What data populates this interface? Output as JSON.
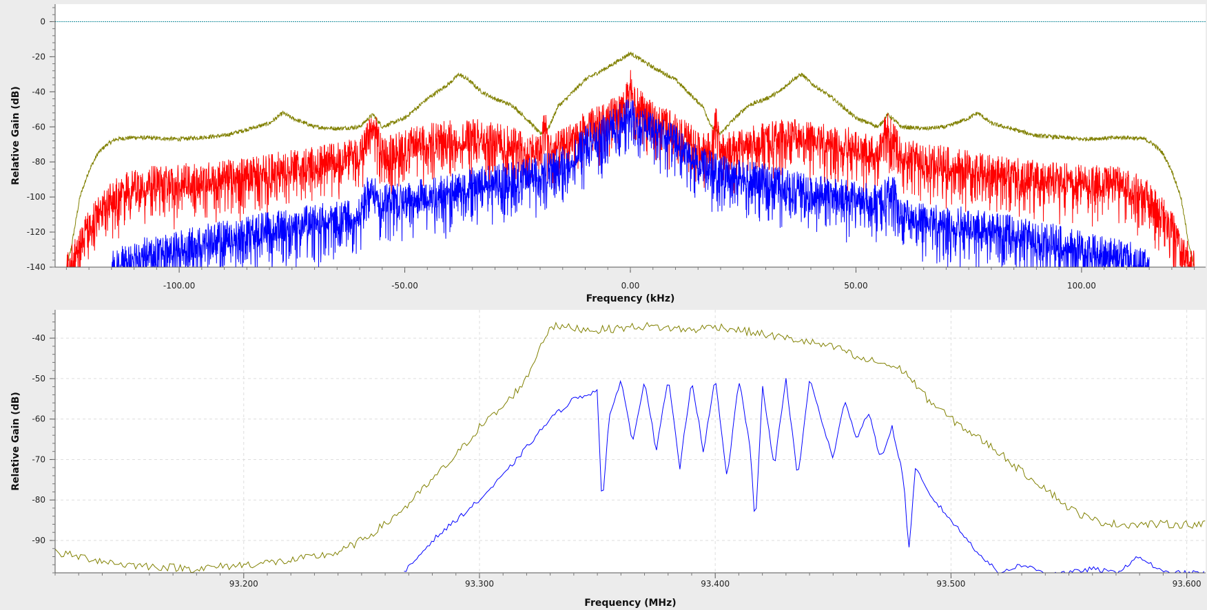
{
  "chart_data": [
    {
      "type": "line",
      "xlabel": "Frequency (kHz)",
      "ylabel": "Relative Gain (dB)",
      "xlim": [
        -127.5,
        127.5
      ],
      "ylim": [
        -140,
        10
      ],
      "x_ticks": [
        -100,
        -50,
        0,
        50,
        100
      ],
      "x_tick_labels": [
        "-100.00",
        "-50.00",
        "0.00",
        "50.00",
        "100.00"
      ],
      "y_ticks": [
        0,
        -20,
        -40,
        -60,
        -80,
        -100,
        -120,
        -140
      ],
      "y_tick_labels": [
        "0",
        "-20",
        "-40",
        "-60",
        "-80",
        "-100",
        "-120",
        "-140"
      ],
      "grid": false,
      "reference_line": {
        "y": 0,
        "color": "#1e8f9e"
      },
      "series": [
        {
          "color": "#808000",
          "x": [
            -125,
            -124,
            -123,
            -122,
            -120,
            -118,
            -116,
            -114,
            -110,
            -100,
            -90,
            -80,
            -77,
            -75,
            -70,
            -65,
            -60,
            -58,
            -57,
            -55,
            -50,
            -45,
            -40,
            -38,
            -36,
            -33,
            -30,
            -26,
            -22,
            -20,
            -18,
            -16,
            -15,
            -10,
            -5,
            0,
            5,
            10,
            15,
            16,
            18,
            20,
            22,
            26,
            30,
            33,
            36,
            38,
            40,
            45,
            50,
            55,
            57,
            58,
            60,
            65,
            70,
            75,
            77,
            80,
            90,
            100,
            110,
            114,
            116,
            118,
            120,
            122,
            123,
            124,
            125
          ],
          "y": [
            -140,
            -130,
            -115,
            -100,
            -85,
            -75,
            -70,
            -67,
            -66,
            -67,
            -65,
            -58,
            -52,
            -55,
            -60,
            -61,
            -60,
            -55,
            -53,
            -60,
            -55,
            -44,
            -35,
            -30,
            -33,
            -40,
            -44,
            -48,
            -58,
            -64,
            -60,
            -48,
            -46,
            -33,
            -26,
            -18,
            -26,
            -33,
            -46,
            -48,
            -60,
            -64,
            -58,
            -48,
            -44,
            -40,
            -33,
            -30,
            -35,
            -44,
            -55,
            -60,
            -53,
            -55,
            -60,
            -61,
            -60,
            -55,
            -52,
            -58,
            -65,
            -67,
            -66,
            -67,
            -70,
            -75,
            -85,
            -100,
            -115,
            -130,
            -140
          ]
        },
        {
          "color": "#ff0000",
          "x": [
            -125,
            -123,
            -120,
            -115,
            -110,
            -100,
            -90,
            -80,
            -70,
            -60,
            -58,
            -57,
            -56,
            -55,
            -50,
            -45,
            -40,
            -35,
            -30,
            -25,
            -20,
            -19,
            -18,
            -15,
            -10,
            -5,
            -1,
            0,
            1,
            5,
            10,
            15,
            18,
            19,
            20,
            25,
            30,
            35,
            40,
            45,
            50,
            55,
            56,
            57,
            58,
            60,
            70,
            80,
            90,
            100,
            110,
            115,
            120,
            123,
            125
          ],
          "y": [
            -140,
            -132,
            -115,
            -100,
            -92,
            -90,
            -88,
            -84,
            -80,
            -75,
            -65,
            -60,
            -65,
            -75,
            -70,
            -67,
            -65,
            -64,
            -66,
            -70,
            -73,
            -55,
            -73,
            -70,
            -60,
            -55,
            -45,
            -35,
            -45,
            -55,
            -60,
            -70,
            -73,
            -55,
            -73,
            -70,
            -66,
            -64,
            -65,
            -67,
            -70,
            -75,
            -65,
            -60,
            -65,
            -75,
            -80,
            -84,
            -88,
            -90,
            -92,
            -100,
            -115,
            -132,
            -140
          ]
        },
        {
          "color": "#0000ff",
          "x": [
            -115,
            -110,
            -100,
            -90,
            -80,
            -70,
            -60,
            -59,
            -58,
            -55,
            -50,
            -45,
            -40,
            -35,
            -30,
            -25,
            -20,
            -15,
            -10,
            -5,
            0,
            5,
            10,
            15,
            20,
            25,
            30,
            35,
            40,
            45,
            50,
            55,
            58,
            59,
            60,
            70,
            80,
            90,
            100,
            110,
            115
          ],
          "y": [
            -140,
            -133,
            -128,
            -122,
            -117,
            -113,
            -110,
            -100,
            -95,
            -102,
            -100,
            -98,
            -96,
            -92,
            -90,
            -88,
            -85,
            -80,
            -68,
            -60,
            -52,
            -60,
            -68,
            -80,
            -85,
            -88,
            -90,
            -92,
            -96,
            -98,
            -100,
            -102,
            -95,
            -100,
            -110,
            -113,
            -117,
            -122,
            -128,
            -133,
            -140
          ]
        }
      ]
    },
    {
      "type": "line",
      "xlabel": "Frequency (MHz)",
      "ylabel": "Relative Gain (dB)",
      "xlim": [
        93.12,
        93.608
      ],
      "ylim": [
        -98,
        -33
      ],
      "x_ticks": [
        93.2,
        93.3,
        93.4,
        93.5,
        93.6
      ],
      "x_tick_labels": [
        "93.200",
        "93.300",
        "93.400",
        "93.500",
        "93.600"
      ],
      "y_ticks": [
        -40,
        -50,
        -60,
        -70,
        -80,
        -90
      ],
      "y_tick_labels": [
        "-40",
        "-50",
        "-60",
        "-70",
        "-80",
        "-90"
      ],
      "grid": true,
      "series": [
        {
          "color": "#808000",
          "x": [
            93.12,
            93.15,
            93.18,
            93.2,
            93.22,
            93.24,
            93.25,
            93.26,
            93.27,
            93.28,
            93.29,
            93.3,
            93.31,
            93.32,
            93.325,
            93.33,
            93.35,
            93.37,
            93.39,
            93.4,
            93.42,
            93.44,
            93.455,
            93.46,
            93.47,
            93.48,
            93.49,
            93.5,
            93.51,
            93.52,
            93.53,
            93.54,
            93.55,
            93.56,
            93.57,
            93.58,
            93.59,
            93.6,
            93.608
          ],
          "y": [
            -93,
            -96,
            -97,
            -96,
            -95,
            -93,
            -90,
            -86,
            -81,
            -75,
            -69,
            -62,
            -57,
            -50,
            -43,
            -37,
            -38,
            -37,
            -38,
            -37,
            -39,
            -41,
            -43,
            -45,
            -46,
            -48,
            -55,
            -60,
            -64,
            -68,
            -73,
            -77,
            -82,
            -85,
            -86,
            -86,
            -86,
            -86,
            -86
          ]
        },
        {
          "color": "#0000ff",
          "x": [
            93.268,
            93.28,
            93.29,
            93.3,
            93.31,
            93.32,
            93.33,
            93.34,
            93.35,
            93.352,
            93.355,
            93.36,
            93.365,
            93.37,
            93.375,
            93.38,
            93.385,
            93.39,
            93.395,
            93.4,
            93.405,
            93.41,
            93.415,
            93.417,
            93.42,
            93.425,
            93.43,
            93.435,
            93.44,
            93.445,
            93.45,
            93.455,
            93.46,
            93.465,
            93.47,
            93.475,
            93.48,
            93.482,
            93.485,
            93.49,
            93.5,
            93.51,
            93.52,
            93.53,
            93.54,
            93.55,
            93.56,
            93.57,
            93.58,
            93.59,
            93.6,
            93.608
          ],
          "y": [
            -98,
            -90,
            -85,
            -80,
            -74,
            -67,
            -60,
            -55,
            -53,
            -82,
            -60,
            -50,
            -66,
            -50,
            -68,
            -50,
            -72,
            -50,
            -68,
            -50,
            -75,
            -50,
            -68,
            -87,
            -52,
            -72,
            -50,
            -75,
            -50,
            -60,
            -70,
            -55,
            -65,
            -58,
            -70,
            -62,
            -75,
            -93,
            -72,
            -78,
            -85,
            -92,
            -98,
            -96,
            -98,
            -98,
            -97,
            -98,
            -94,
            -98,
            -98,
            -98
          ]
        }
      ]
    }
  ]
}
